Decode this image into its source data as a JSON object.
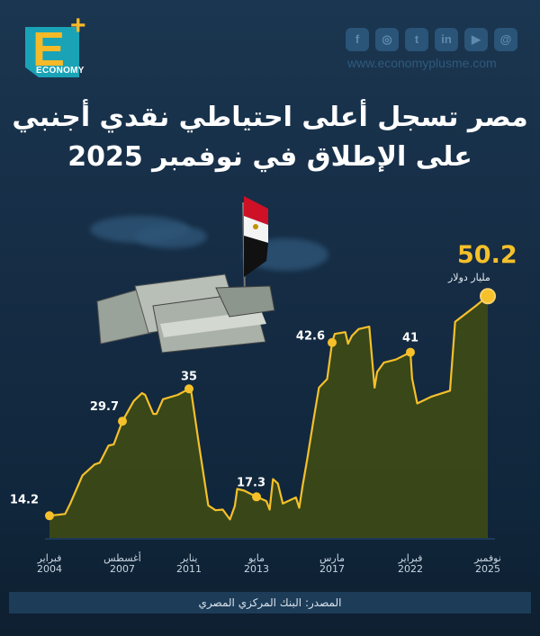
{
  "brand": {
    "logo_letter": "E",
    "logo_word": "ECONOMY",
    "logo_plus": "+",
    "url": "www.economyplusme.com",
    "social": [
      {
        "icon": "facebook-icon",
        "glyph": "f"
      },
      {
        "icon": "instagram-icon",
        "glyph": "◎"
      },
      {
        "icon": "twitter-icon",
        "glyph": "t"
      },
      {
        "icon": "linkedin-icon",
        "glyph": "in"
      },
      {
        "icon": "youtube-icon",
        "glyph": "▶"
      },
      {
        "icon": "threads-icon",
        "glyph": "@"
      }
    ]
  },
  "title": {
    "line1": "مصر تسجل أعلى احتياطي نقدي أجنبي",
    "line2": "على الإطلاق في نوفمبر 2025"
  },
  "source": "المصدر: البنك المركزي المصري",
  "colors": {
    "line": "#f5c02a",
    "fill": "#3d4a16",
    "background": "#152c44"
  },
  "chart_data": {
    "type": "area",
    "title": "مصر تسجل أعلى احتياطي نقدي أجنبي على الإطلاق في نوفمبر 2025",
    "unit": "مليار دولار",
    "ylim": [
      11,
      52
    ],
    "grid": false,
    "x_ticks": [
      {
        "date": "2004-02",
        "month": "فبراير",
        "year": "2004"
      },
      {
        "date": "2007-08",
        "month": "أغسطس",
        "year": "2007"
      },
      {
        "date": "2011-01",
        "month": "يناير",
        "year": "2011"
      },
      {
        "date": "2013-05",
        "month": "مايو",
        "year": "2013"
      },
      {
        "date": "2017-03",
        "month": "مارس",
        "year": "2017"
      },
      {
        "date": "2022-02",
        "month": "فبراير",
        "year": "2022"
      },
      {
        "date": "2025-11",
        "month": "نوفمبر",
        "year": "2025"
      }
    ],
    "annotations": [
      {
        "date": "2004-02",
        "value": 14.2,
        "label": "14.2"
      },
      {
        "date": "2007-08",
        "value": 29.7,
        "label": "29.7"
      },
      {
        "date": "2011-01",
        "value": 35,
        "label": "35"
      },
      {
        "date": "2013-05",
        "value": 17.3,
        "label": "17.3"
      },
      {
        "date": "2017-03",
        "value": 42.6,
        "label": "42.6"
      },
      {
        "date": "2022-02",
        "value": 41,
        "label": "41"
      },
      {
        "date": "2025-11",
        "value": 50.2,
        "label": "50.2"
      }
    ],
    "series": [
      {
        "points": [
          [
            "2004-02",
            14.2
          ],
          [
            "2004-11",
            14.5
          ],
          [
            "2005-02",
            16.2
          ],
          [
            "2005-09",
            20.8
          ],
          [
            "2006-04",
            22.6
          ],
          [
            "2006-07",
            22.9
          ],
          [
            "2006-12",
            25.7
          ],
          [
            "2007-03",
            25.9
          ],
          [
            "2007-08",
            29.7
          ],
          [
            "2008-03",
            33.0
          ],
          [
            "2008-08",
            34.3
          ],
          [
            "2008-10",
            34.0
          ],
          [
            "2009-03",
            30.9
          ],
          [
            "2009-05",
            30.9
          ],
          [
            "2009-09",
            33.3
          ],
          [
            "2010-06",
            34.0
          ],
          [
            "2011-01",
            35.0
          ],
          [
            "2011-02",
            34.3
          ],
          [
            "2011-05",
            26.2
          ],
          [
            "2011-09",
            15.9
          ],
          [
            "2011-12",
            15.1
          ],
          [
            "2012-03",
            15.2
          ],
          [
            "2012-06",
            13.6
          ],
          [
            "2012-08",
            15.8
          ],
          [
            "2012-09",
            18.6
          ],
          [
            "2012-12",
            18.3
          ],
          [
            "2013-05",
            17.3
          ],
          [
            "2013-11",
            16.6
          ],
          [
            "2014-01",
            15.2
          ],
          [
            "2014-03",
            20.2
          ],
          [
            "2014-06",
            19.5
          ],
          [
            "2014-09",
            16.2
          ],
          [
            "2015-05",
            17.2
          ],
          [
            "2015-07",
            15.5
          ],
          [
            "2015-09",
            19.0
          ],
          [
            "2015-12",
            23.7
          ],
          [
            "2016-04",
            30.4
          ],
          [
            "2016-07",
            35.2
          ],
          [
            "2016-12",
            36.6
          ],
          [
            "2017-03",
            42.6
          ],
          [
            "2017-05",
            44.0
          ],
          [
            "2018-01",
            44.3
          ],
          [
            "2018-03",
            42.4
          ],
          [
            "2018-06",
            43.7
          ],
          [
            "2018-11",
            44.8
          ],
          [
            "2019-07",
            45.2
          ],
          [
            "2019-11",
            35.2
          ],
          [
            "2020-01",
            37.8
          ],
          [
            "2020-06",
            39.3
          ],
          [
            "2021-03",
            39.8
          ],
          [
            "2022-02",
            41.0
          ],
          [
            "2022-03",
            36.7
          ],
          [
            "2022-06",
            32.6
          ],
          [
            "2023-02",
            33.7
          ],
          [
            "2024-01",
            34.7
          ],
          [
            "2024-04",
            46.0
          ],
          [
            "2025-04",
            48.6
          ],
          [
            "2025-11",
            50.2
          ]
        ]
      }
    ]
  }
}
